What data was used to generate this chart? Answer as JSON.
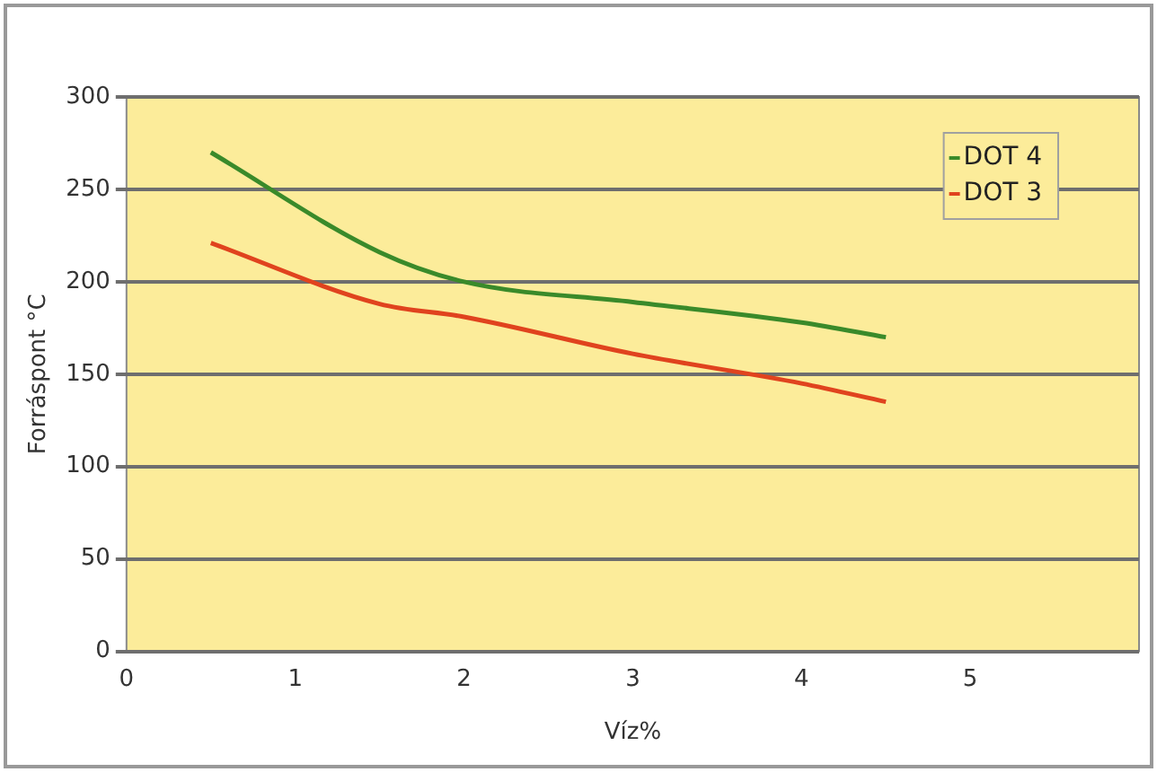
{
  "chart_data": {
    "type": "line",
    "xlabel": "Víz%",
    "ylabel": "Forráspont °C",
    "x": [
      0.5,
      1.5,
      2,
      3,
      4,
      4.5
    ],
    "series": [
      {
        "name": "DOT 4",
        "color": "#3a8a2a",
        "values": [
          270,
          216,
          200,
          189,
          178,
          170
        ]
      },
      {
        "name": "DOT 3",
        "color": "#e0431e",
        "values": [
          221,
          188,
          181,
          161,
          145,
          135
        ]
      }
    ],
    "xlim": [
      0,
      6
    ],
    "xticks": [
      0,
      1,
      2,
      3,
      4,
      5
    ],
    "ylim": [
      0,
      300
    ],
    "yticks": [
      0,
      50,
      100,
      150,
      200,
      250,
      300
    ],
    "grid": "y",
    "legend": "top right",
    "marker": "none",
    "line_style": "solid"
  }
}
